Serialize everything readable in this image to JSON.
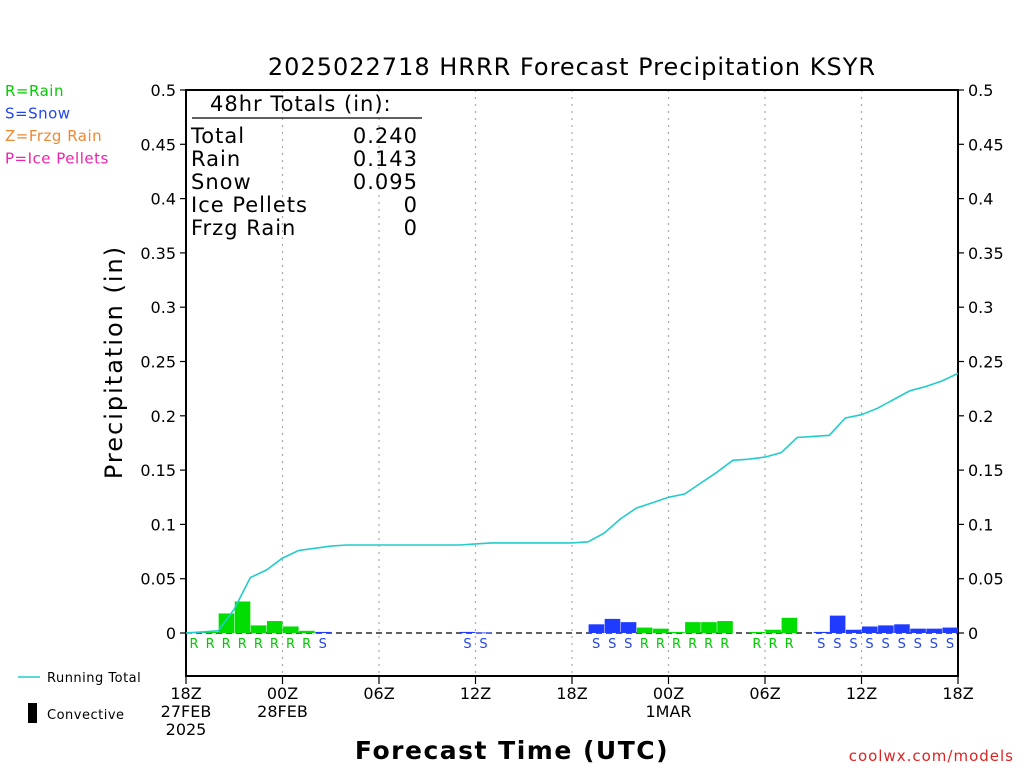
{
  "chart_data": {
    "type": "bar",
    "title": "2025022718 HRRR Forecast Precipitation KSYR",
    "xlabel": "Forecast Time (UTC)",
    "ylabel": "Precipitation (in)",
    "ylim": [
      0,
      0.5
    ],
    "xlim_hours": [
      0,
      48
    ],
    "y_ticks": [
      "0",
      "0.05",
      "0.1",
      "0.15",
      "0.2",
      "0.25",
      "0.3",
      "0.35",
      "0.4",
      "0.45",
      "0.5"
    ],
    "x_ticks": [
      {
        "h": 0,
        "lines": [
          "18Z",
          "27FEB",
          "2025"
        ]
      },
      {
        "h": 6,
        "lines": [
          "00Z",
          "28FEB"
        ]
      },
      {
        "h": 12,
        "lines": [
          "06Z"
        ]
      },
      {
        "h": 18,
        "lines": [
          "12Z"
        ]
      },
      {
        "h": 24,
        "lines": [
          "18Z"
        ]
      },
      {
        "h": 30,
        "lines": [
          "00Z",
          "1MAR"
        ]
      },
      {
        "h": 36,
        "lines": [
          "06Z"
        ]
      },
      {
        "h": 42,
        "lines": [
          "12Z"
        ]
      },
      {
        "h": 48,
        "lines": [
          "18Z"
        ]
      }
    ],
    "totals": {
      "heading": "48hr Totals (in):",
      "rows": [
        {
          "label": "Total",
          "value": "0.240"
        },
        {
          "label": "Rain",
          "value": "0.143"
        },
        {
          "label": "Snow",
          "value": "0.095"
        },
        {
          "label": "Ice Pellets",
          "value": "0"
        },
        {
          "label": "Frzg Rain",
          "value": "0"
        }
      ]
    },
    "type_legend": [
      {
        "text": "R=Rain",
        "color": "#00cc00"
      },
      {
        "text": "S=Snow",
        "color": "#2244ee"
      },
      {
        "text": "Z=Frzg Rain",
        "color": "#ee8833"
      },
      {
        "text": "P=Ice Pellets",
        "color": "#ee22aa"
      }
    ],
    "running_total_label": "Running Total",
    "convective_label": "Convective",
    "source_label": "coolwx.com/models",
    "colors": {
      "rain": "#00dd00",
      "snow": "#1f3bff",
      "running_total": "#22cccc",
      "grid": "#aaaaaa"
    },
    "hourly": [
      {
        "h": 1,
        "v": 0.001,
        "type": "R"
      },
      {
        "h": 2,
        "v": 0.001,
        "type": "R"
      },
      {
        "h": 3,
        "v": 0.018,
        "type": "R"
      },
      {
        "h": 4,
        "v": 0.029,
        "type": "R"
      },
      {
        "h": 5,
        "v": 0.007,
        "type": "R"
      },
      {
        "h": 6,
        "v": 0.011,
        "type": "R"
      },
      {
        "h": 7,
        "v": 0.006,
        "type": "R"
      },
      {
        "h": 8,
        "v": 0.002,
        "type": "R"
      },
      {
        "h": 9,
        "v": 0.001,
        "type": "S"
      },
      {
        "h": 18,
        "v": 0.001,
        "type": "S"
      },
      {
        "h": 19,
        "v": 0.0005,
        "type": "S"
      },
      {
        "h": 26,
        "v": 0.008,
        "type": "S"
      },
      {
        "h": 27,
        "v": 0.013,
        "type": "S"
      },
      {
        "h": 28,
        "v": 0.01,
        "type": "S"
      },
      {
        "h": 29,
        "v": 0.005,
        "type": "R"
      },
      {
        "h": 30,
        "v": 0.004,
        "type": "R"
      },
      {
        "h": 31,
        "v": 0.001,
        "type": "R"
      },
      {
        "h": 32,
        "v": 0.01,
        "type": "R"
      },
      {
        "h": 33,
        "v": 0.01,
        "type": "R"
      },
      {
        "h": 34,
        "v": 0.011,
        "type": "R"
      },
      {
        "h": 36,
        "v": 0.001,
        "type": "R"
      },
      {
        "h": 37,
        "v": 0.003,
        "type": "R"
      },
      {
        "h": 38,
        "v": 0.014,
        "type": "R"
      },
      {
        "h": 40,
        "v": 0.001,
        "type": "S"
      },
      {
        "h": 41,
        "v": 0.016,
        "type": "S"
      },
      {
        "h": 42,
        "v": 0.003,
        "type": "S"
      },
      {
        "h": 43,
        "v": 0.006,
        "type": "S"
      },
      {
        "h": 44,
        "v": 0.007,
        "type": "S"
      },
      {
        "h": 45,
        "v": 0.008,
        "type": "S"
      },
      {
        "h": 46,
        "v": 0.004,
        "type": "S"
      },
      {
        "h": 47,
        "v": 0.004,
        "type": "S"
      },
      {
        "h": 48,
        "v": 0.005,
        "type": "S"
      }
    ],
    "running_total": [
      [
        0,
        0
      ],
      [
        1,
        0.001
      ],
      [
        2,
        0.002
      ],
      [
        3,
        0.022
      ],
      [
        4,
        0.051
      ],
      [
        5,
        0.058
      ],
      [
        6,
        0.069
      ],
      [
        7,
        0.076
      ],
      [
        8,
        0.078
      ],
      [
        9,
        0.08
      ],
      [
        10,
        0.081
      ],
      [
        11,
        0.081
      ],
      [
        12,
        0.081
      ],
      [
        13,
        0.081
      ],
      [
        14,
        0.081
      ],
      [
        15,
        0.081
      ],
      [
        16,
        0.081
      ],
      [
        17,
        0.081
      ],
      [
        18,
        0.082
      ],
      [
        19,
        0.083
      ],
      [
        20,
        0.083
      ],
      [
        21,
        0.083
      ],
      [
        22,
        0.083
      ],
      [
        23,
        0.083
      ],
      [
        24,
        0.083
      ],
      [
        25,
        0.084
      ],
      [
        26,
        0.092
      ],
      [
        27,
        0.105
      ],
      [
        28,
        0.115
      ],
      [
        29,
        0.12
      ],
      [
        30,
        0.125
      ],
      [
        31,
        0.128
      ],
      [
        32,
        0.138
      ],
      [
        33,
        0.148
      ],
      [
        34,
        0.159
      ],
      [
        35,
        0.16
      ],
      [
        36,
        0.162
      ],
      [
        37,
        0.166
      ],
      [
        38,
        0.18
      ],
      [
        39,
        0.181
      ],
      [
        40,
        0.182
      ],
      [
        41,
        0.198
      ],
      [
        42,
        0.201
      ],
      [
        43,
        0.207
      ],
      [
        44,
        0.215
      ],
      [
        45,
        0.223
      ],
      [
        46,
        0.227
      ],
      [
        47,
        0.232
      ],
      [
        48,
        0.239
      ]
    ]
  }
}
